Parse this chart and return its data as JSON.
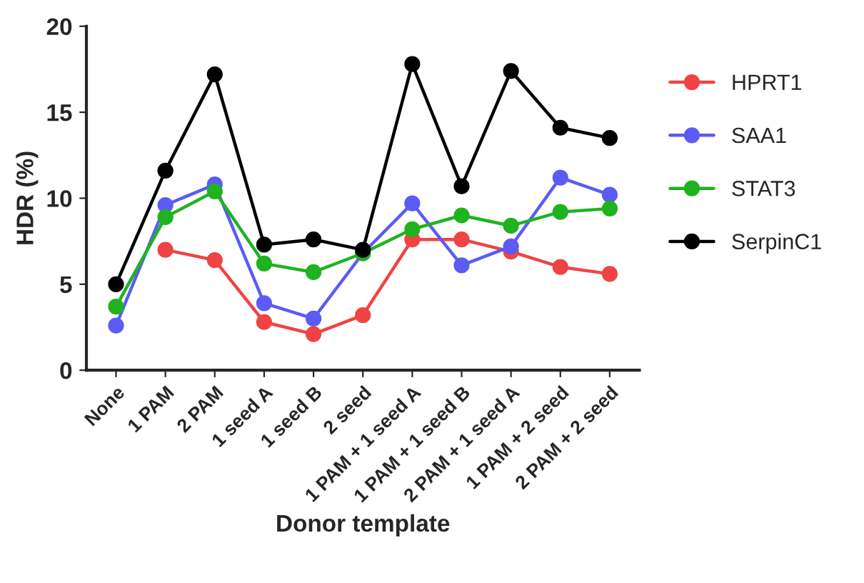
{
  "chart_data": {
    "type": "line",
    "xlabel": "Donor template",
    "ylabel": "HDR (%)",
    "categories": [
      "None",
      "1 PAM",
      "2 PAM",
      "1 seed A",
      "1 seed B",
      "2 seed",
      "1 PAM + 1 seed A",
      "1 PAM + 1 seed B",
      "2 PAM + 1 seed A",
      "1 PAM + 2 seed",
      "2 PAM + 2 seed"
    ],
    "series": [
      {
        "name": "HPRT1",
        "color": "#f04343",
        "values": [
          null,
          7.0,
          6.4,
          2.8,
          2.1,
          3.2,
          7.6,
          7.6,
          6.9,
          6.0,
          5.6
        ]
      },
      {
        "name": "SAA1",
        "color": "#5b5bf5",
        "values": [
          2.6,
          9.6,
          10.8,
          3.9,
          3.0,
          6.8,
          9.7,
          6.1,
          7.2,
          11.2,
          10.2
        ]
      },
      {
        "name": "STAT3",
        "color": "#1fb31f",
        "values": [
          3.7,
          8.9,
          10.4,
          6.2,
          5.7,
          6.8,
          8.2,
          9.0,
          8.4,
          9.2,
          9.4
        ]
      },
      {
        "name": "SerpinC1",
        "color": "#000000",
        "values": [
          5.0,
          11.6,
          17.2,
          7.3,
          7.6,
          7.0,
          17.8,
          10.7,
          17.4,
          14.1,
          13.5
        ]
      }
    ],
    "ylim": [
      0,
      20
    ],
    "yticks": [
      0,
      5,
      10,
      15,
      20
    ],
    "grid": false,
    "legend": "right",
    "marker": "circle",
    "line_style": "solid"
  }
}
